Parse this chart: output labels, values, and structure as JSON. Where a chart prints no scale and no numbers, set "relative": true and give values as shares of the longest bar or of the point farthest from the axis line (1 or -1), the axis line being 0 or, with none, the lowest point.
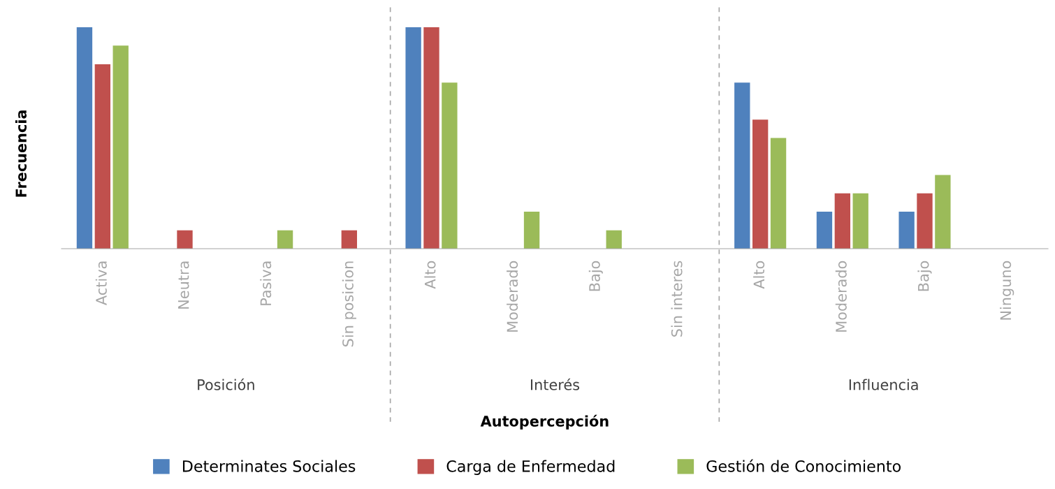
{
  "chart_data": {
    "type": "bar",
    "relative": true,
    "xlabel": "Autopercepción",
    "ylabel": "Frecuencia",
    "categories": [
      "Activa",
      "Neutra",
      "Pasiva",
      "Sin posicion",
      "Alto",
      "Moderado",
      "Bajo",
      "Sin interes",
      "Alto",
      "Moderado",
      "Bajo",
      "Ninguno"
    ],
    "annotations": [
      "Posición",
      "Interés",
      "Influencia"
    ],
    "series": [
      {
        "name": "Determinates Sociales",
        "color": "#4f81bd",
        "values": [
          1,
          null,
          null,
          null,
          1,
          null,
          null,
          null,
          0.75,
          0.167,
          0.167,
          null
        ]
      },
      {
        "name": "Carga de Enfermedad",
        "color": "#c0504d",
        "values": [
          0.833,
          0.083,
          null,
          0.083,
          1,
          null,
          null,
          null,
          0.583,
          0.25,
          0.25,
          null
        ]
      },
      {
        "name": "Gestión de Conocimiento",
        "color": "#9bbb59",
        "values": [
          0.917,
          null,
          0.083,
          null,
          0.75,
          0.167,
          0.083,
          null,
          0.5,
          0.25,
          0.333,
          null
        ]
      }
    ],
    "legend": "bottom",
    "grid": false
  }
}
